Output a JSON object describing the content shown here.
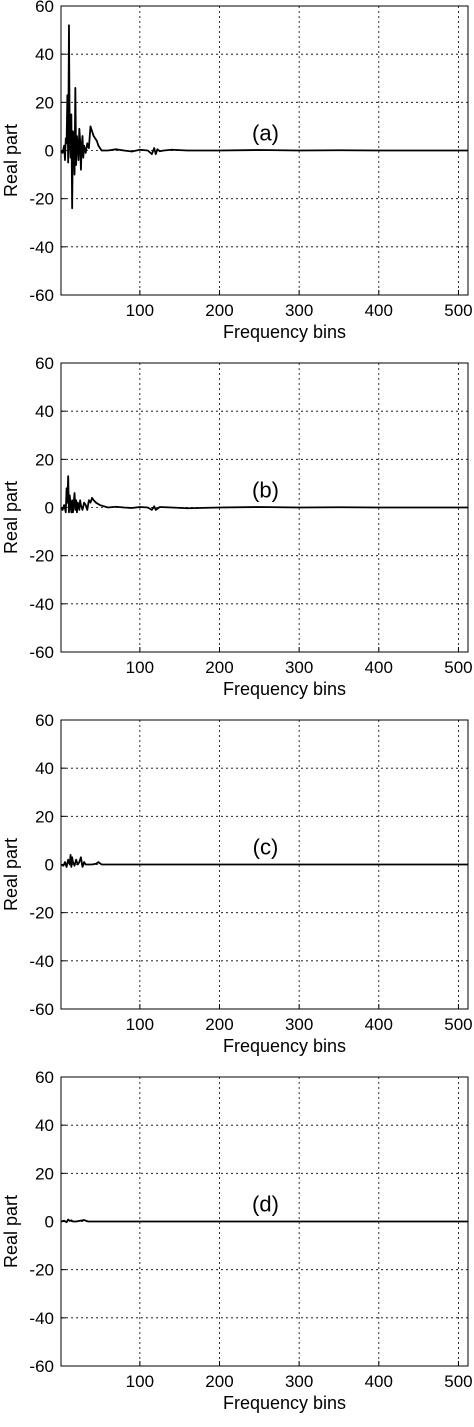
{
  "chart_data": [
    {
      "type": "line",
      "annotation": "(a)",
      "title": "",
      "xlabel": "Frequency bins",
      "ylabel": "Real part",
      "xlim": [
        1,
        512
      ],
      "ylim": [
        -60,
        60
      ],
      "xticks": [
        100,
        200,
        300,
        400,
        500
      ],
      "yticks": [
        -60,
        -40,
        -20,
        0,
        20,
        40,
        60
      ],
      "grid": true,
      "series": [
        {
          "x": [
            1,
            3,
            5,
            6,
            7,
            8,
            9,
            10,
            11,
            12,
            13,
            14,
            15,
            16,
            17,
            18,
            19,
            20,
            21,
            22,
            23,
            24,
            25,
            26,
            27,
            28,
            29,
            30,
            32,
            34,
            36,
            38,
            40,
            42,
            44,
            46,
            48,
            50,
            52,
            55,
            60,
            70,
            80,
            90,
            100,
            110,
            115,
            118,
            120,
            122,
            125,
            130,
            140,
            160,
            200,
            250,
            300,
            350,
            400,
            450,
            512
          ],
          "y": [
            0,
            -1,
            2,
            -4,
            5,
            3,
            23,
            -5,
            52,
            3,
            -3,
            15,
            -24,
            8,
            4,
            -10,
            26,
            -6,
            6,
            2,
            -4,
            9,
            4,
            -8,
            2,
            6,
            -3,
            2,
            -1,
            3,
            1,
            10,
            8,
            6,
            5,
            4,
            2,
            1,
            0,
            0,
            0,
            0.5,
            0,
            -0.4,
            0.3,
            0,
            -1.5,
            1,
            -1.5,
            0.5,
            -0.3,
            0,
            0.3,
            0,
            0,
            0.2,
            0,
            0.1,
            0,
            0,
            0
          ]
        }
      ]
    },
    {
      "type": "line",
      "annotation": "(b)",
      "title": "",
      "xlabel": "Frequency bins",
      "ylabel": "Real part",
      "xlim": [
        1,
        512
      ],
      "ylim": [
        -60,
        60
      ],
      "xticks": [
        100,
        200,
        300,
        400,
        500
      ],
      "yticks": [
        -60,
        -40,
        -20,
        0,
        20,
        40,
        60
      ],
      "grid": true,
      "series": [
        {
          "x": [
            1,
            3,
            5,
            7,
            8,
            9,
            10,
            11,
            12,
            13,
            14,
            15,
            16,
            17,
            18,
            19,
            20,
            21,
            22,
            23,
            24,
            25,
            26,
            28,
            30,
            32,
            34,
            36,
            38,
            40,
            42,
            45,
            50,
            55,
            60,
            70,
            80,
            90,
            100,
            110,
            115,
            118,
            120,
            125,
            140,
            160,
            200,
            250,
            300,
            350,
            400,
            450,
            512
          ],
          "y": [
            0,
            -1,
            1,
            -2,
            8,
            2,
            13,
            -2,
            5,
            1,
            -2,
            3,
            -2,
            2,
            6,
            -1,
            3,
            -2,
            2,
            1,
            -1,
            3,
            1,
            -1,
            2,
            1,
            -1,
            3,
            2,
            4,
            3,
            2,
            1,
            0.5,
            0,
            0.3,
            0,
            -0.2,
            0.2,
            0,
            -1,
            0.5,
            -1,
            0.2,
            0,
            -0.3,
            0,
            0.2,
            0,
            0.1,
            0,
            0,
            0
          ]
        }
      ]
    },
    {
      "type": "line",
      "annotation": "(c)",
      "title": "",
      "xlabel": "Frequency bins",
      "ylabel": "Real part",
      "xlim": [
        1,
        512
      ],
      "ylim": [
        -60,
        60
      ],
      "xticks": [
        100,
        200,
        300,
        400,
        500
      ],
      "yticks": [
        -60,
        -40,
        -20,
        0,
        20,
        40,
        60
      ],
      "grid": true,
      "series": [
        {
          "x": [
            1,
            4,
            6,
            8,
            10,
            12,
            13,
            14,
            15,
            16,
            18,
            20,
            22,
            24,
            26,
            28,
            30,
            32,
            35,
            40,
            45,
            48,
            50,
            52,
            55,
            60,
            100,
            200,
            300,
            400,
            512
          ],
          "y": [
            0,
            -0.5,
            1,
            -1,
            2,
            0,
            4,
            -1,
            3,
            1,
            -0.5,
            2,
            0,
            1,
            3,
            -1,
            1,
            0,
            0,
            0,
            0.3,
            1,
            0.5,
            0,
            0,
            0,
            0,
            0,
            0,
            0,
            0
          ]
        }
      ]
    },
    {
      "type": "line",
      "annotation": "(d)",
      "title": "",
      "xlabel": "Frequency bins",
      "ylabel": "Real part",
      "xlim": [
        1,
        512
      ],
      "ylim": [
        -60,
        60
      ],
      "xticks": [
        100,
        200,
        300,
        400,
        500
      ],
      "yticks": [
        -60,
        -40,
        -20,
        0,
        20,
        40,
        60
      ],
      "grid": true,
      "series": [
        {
          "x": [
            1,
            5,
            8,
            10,
            12,
            14,
            16,
            20,
            25,
            30,
            35,
            40,
            100,
            200,
            300,
            400,
            512
          ],
          "y": [
            0,
            0.3,
            -0.3,
            0.8,
            0.2,
            0.5,
            0,
            0,
            0.3,
            0.6,
            0,
            0,
            0,
            0,
            0,
            0,
            0
          ]
        }
      ]
    }
  ]
}
